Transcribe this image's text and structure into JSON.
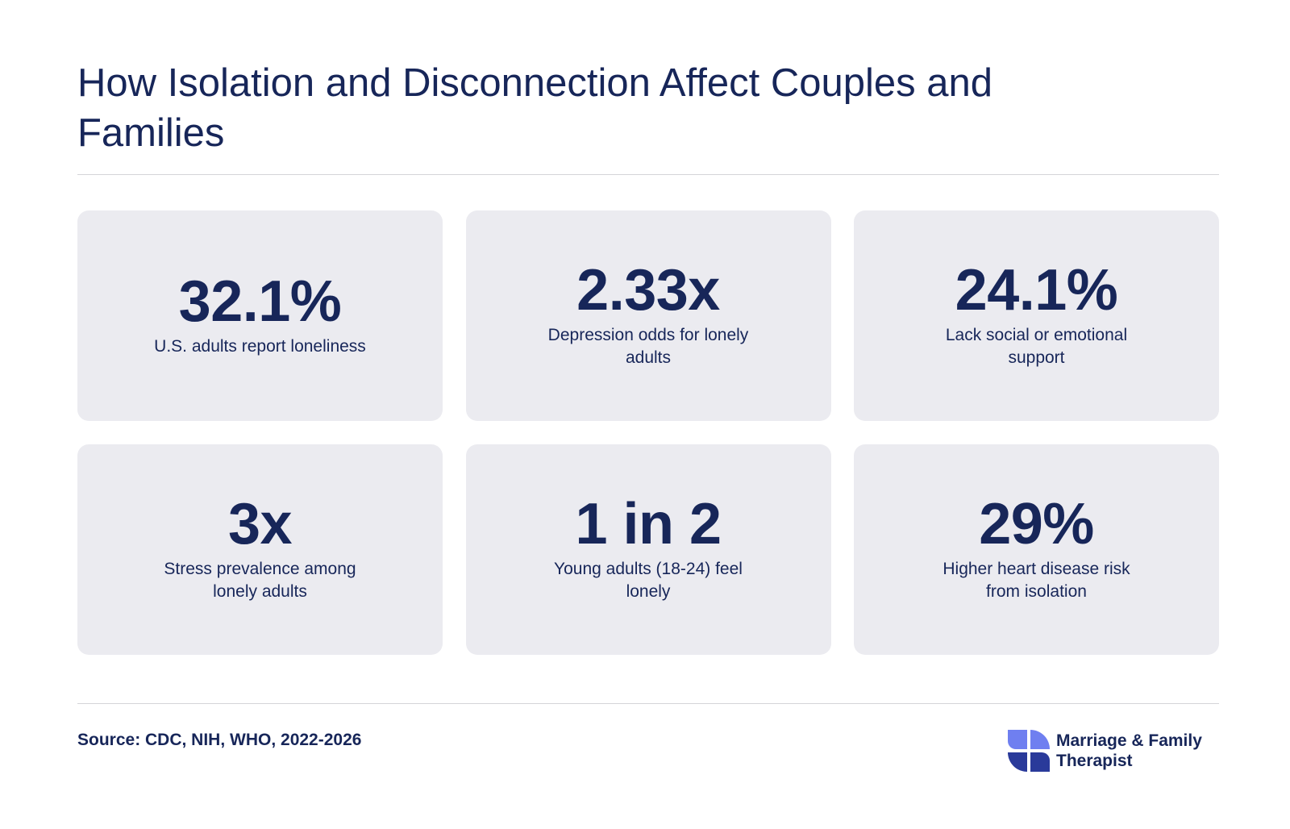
{
  "header": {
    "title": "How Isolation and Disconnection Affect Couples and Families"
  },
  "stats": [
    {
      "value": "32.1%",
      "label": "U.S. adults report loneliness"
    },
    {
      "value": "2.33x",
      "label": "Depression odds for lonely adults"
    },
    {
      "value": "24.1%",
      "label": "Lack social or emotional support"
    },
    {
      "value": "3x",
      "label": "Stress prevalence among lonely adults"
    },
    {
      "value": "1 in 2",
      "label": "Young adults (18-24) feel lonely"
    },
    {
      "value": "29%",
      "label": "Higher heart disease risk from isolation"
    }
  ],
  "footer": {
    "source": "Source: CDC, NIH, WHO, 2022-2026",
    "brand_name": "Marriage & Family Therapist",
    "brand_icon": "pinwheel-logo-icon"
  },
  "colors": {
    "text": "#172659",
    "card_background": "#ebebf0",
    "logo_light": "#6f7ff0",
    "logo_dark": "#2a3a9a"
  }
}
